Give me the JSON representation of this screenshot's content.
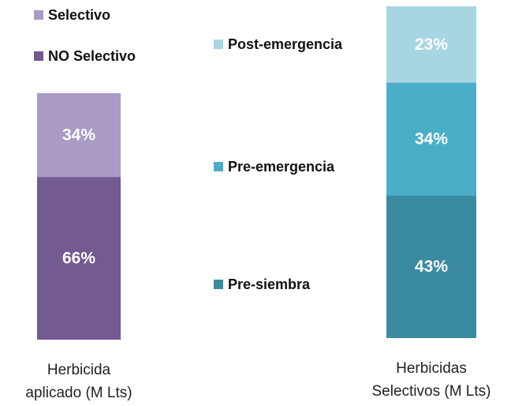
{
  "chart_data": [
    {
      "type": "bar",
      "stacked": true,
      "categories": [
        "Herbicida\naplicado (M Lts)"
      ],
      "ylim": [
        0,
        100
      ],
      "series": [
        {
          "name": "Selectivo",
          "color": "#a99bc4",
          "values": [
            34
          ],
          "value_labels": [
            "34%"
          ]
        },
        {
          "name": "NO Selectivo",
          "color": "#735a91",
          "values": [
            66
          ],
          "value_labels": [
            "66%"
          ]
        }
      ]
    },
    {
      "type": "bar",
      "stacked": true,
      "categories": [
        "Herbicidas\nSelectivos (M Lts)"
      ],
      "ylim": [
        0,
        100
      ],
      "series": [
        {
          "name": "Post-emergencia",
          "color": "#a7d5e2",
          "values": [
            23
          ],
          "value_labels": [
            "23%"
          ]
        },
        {
          "name": "Pre-emergencia",
          "color": "#4baec8",
          "values": [
            34
          ],
          "value_labels": [
            "34%"
          ]
        },
        {
          "name": "Pre-siembra",
          "color": "#3b8ba0",
          "values": [
            43
          ],
          "value_labels": [
            "43%"
          ]
        }
      ]
    }
  ]
}
